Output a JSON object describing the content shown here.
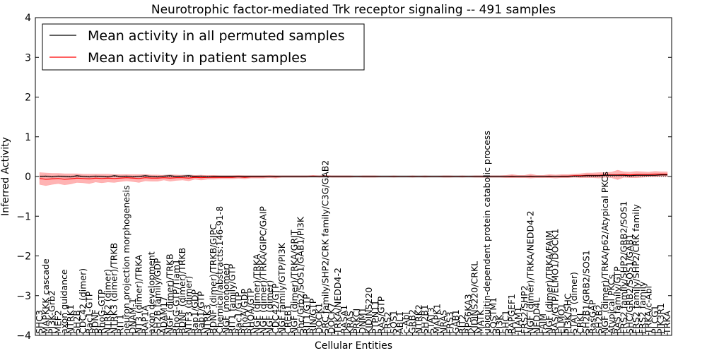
{
  "chart_data": {
    "type": "line",
    "title": "Neurotrophic factor-mediated Trk receptor signaling -- 491 samples",
    "xlabel": "Cellular Entities",
    "ylabel": "Inferred Activity",
    "ylim": [
      -4,
      4
    ],
    "yticks": [
      "4",
      "3",
      "2",
      "1",
      "0",
      "−1",
      "−2",
      "−3",
      "−4"
    ],
    "ytick_values": [
      4,
      3,
      2,
      1,
      0,
      -1,
      -2,
      -3,
      -4
    ],
    "grid": false,
    "legend_position": "top-left",
    "legend": [
      {
        "label": "Mean activity in all permuted samples",
        "color": "#000000"
      },
      {
        "label": "Mean activity in patient samples",
        "color": "#ff0000"
      }
    ],
    "colors": {
      "patient": "#ff0000",
      "patient_band": "#ff8080",
      "permuted": "#000000",
      "permuted_band": "#bbbbbb"
    },
    "categories": [
      "SHC3",
      "MAPKKK cascade",
      "PI3K-Grb2",
      "MEF2",
      "axon guidance",
      "NTRK1",
      "SH2B",
      "CDC42 (dimer)",
      "Rac1-GTP",
      "BDNF",
      "RhoG-GTP",
      "NTRK2 (dimer)",
      "NTRK3 (dimer)/TRKB",
      "RIT1",
      "neuron projection morphogenesis",
      "DNAM-1",
      "NT3 (dimer)/TRKA",
      "RAP1A",
      "axon development",
      "SH2B family/GDP",
      "ADAM17",
      "NGF (dimer)/TRKB",
      "RhoG-GTP/Tiam1",
      "BDNF (dimer)/TRKB",
      "NTF3 (dimer)",
      "Rap1/GDP",
      "Rap1/GTP",
      "NTRK3",
      "BDNF (dimer)/TRKB/GIPC",
      "Chemical/abstracts:146-91-8",
      "NGF (monomer)",
      "RIT1 family/GTP",
      "Rac1/GTP",
      "RhoA/GDP",
      "RHOA/GTP",
      "NGF (dimer)/TRKA",
      "NGF (dimer)/TRKA/GIPC/GAIP",
      "NGF (dimer)",
      "CDC42/GTP",
      "NGF family/GTP/PI3K",
      "CREB1",
      "NGF (dimer)/TRKA/GRIT",
      "Shc/Grb2/SOS1/GAB1/PI3K",
      "RIT1/GTP",
      "RIN/GTP",
      "DOCK1",
      "SRC family/SHP2/CRK family/C3G/GAB2",
      "DOCK7",
      "TRKA/NEDD4-2",
      "RASA1",
      "KRAS",
      "PRKCI",
      "DNM1",
      "KIDINS220",
      "PTPN11",
      "RAS/GTP",
      "FRS2",
      "SOS1",
      "ABL1",
      "c-Abl",
      "GRB2",
      "NTRK2",
      "SH2B1",
      "STAT3",
      "MAPK1",
      "NRAS",
      "FRS3",
      "GAB1",
      "RIT2",
      "RPS6KA3",
      "KIDINS220/CRKL",
      "MATK",
      "ubiquitin-dependent protein catabolic process",
      "SQSTM1",
      "PI3K",
      "SHC1",
      "RAPGEF1",
      "TIAM1",
      "FRS2/SHP2",
      "NGF (dimer)/TRKA/NEDD4-2",
      "NEDD4L",
      "FAIM",
      "NGF (dimer)/TRKA/FAIM",
      "RAS/GTP/ELMO1/DOCK1",
      "ELMO1",
      "PI3K/SHC",
      "STAT3 (dimer)",
      "CRKL",
      "SH2B1/GRB2/SOS1",
      "RasGAP",
      "SH2B2",
      "NGF (dimer)/TRKA/p62/Atypical PKCs",
      "Atypical PKCs",
      "RAS family/GTP",
      "FRS2 family/SHP2/GRB2/SOS1",
      "SHC/GRB2/SOS1/GAB1",
      "FRS2 family/SHP2/CRK family",
      "FRS2 family",
      "TRKA/c-Abl",
      "PLCG1",
      "PIK3R1",
      "TRKA"
    ],
    "series": [
      {
        "name": "Mean activity in patient samples",
        "values": [
          -0.05,
          -0.07,
          -0.06,
          -0.05,
          -0.07,
          -0.06,
          -0.04,
          -0.05,
          -0.06,
          -0.04,
          -0.05,
          -0.04,
          -0.05,
          -0.04,
          -0.03,
          -0.04,
          -0.05,
          -0.03,
          -0.04,
          -0.04,
          -0.03,
          -0.04,
          -0.03,
          -0.03,
          -0.04,
          -0.02,
          -0.03,
          -0.02,
          -0.02,
          -0.02,
          -0.02,
          -0.02,
          -0.01,
          -0.02,
          -0.01,
          -0.01,
          -0.01,
          0,
          -0.01,
          0,
          0,
          0,
          0,
          0,
          0.01,
          0,
          0.01,
          0,
          0,
          0,
          0,
          0,
          0,
          0,
          0,
          0,
          0,
          0,
          0,
          0,
          0,
          0,
          0,
          0,
          0,
          0,
          0,
          0,
          0,
          0,
          0,
          0,
          0,
          0,
          0,
          0,
          0.01,
          0,
          0,
          0.01,
          0,
          0,
          0.01,
          0,
          0.01,
          0.01,
          0.02,
          0.02,
          0.03,
          0.03,
          0.03,
          0.04,
          0.04,
          0.04,
          0.05,
          0.04,
          0.05,
          0.05,
          0.05,
          0.06,
          0.06,
          0.06
        ]
      },
      {
        "name": "Mean activity in all permuted samples",
        "values": [
          0,
          0.01,
          -0.01,
          0.01,
          0,
          -0.01,
          0.02,
          0,
          -0.01,
          0.01,
          0,
          -0.01,
          0.02,
          0,
          0.01,
          -0.01,
          0,
          0.02,
          0,
          -0.01,
          0.01,
          0.02,
          0,
          0.01,
          0.02,
          0,
          0.01,
          -0.01,
          0,
          0,
          0,
          0,
          0,
          0,
          0,
          0,
          0,
          0,
          0,
          0,
          0,
          0,
          0,
          0,
          0,
          0,
          0,
          0,
          0,
          0,
          0,
          0,
          0,
          0,
          0,
          0,
          0,
          0,
          0,
          0,
          0,
          0,
          0,
          0,
          0,
          0,
          0,
          0,
          0,
          0,
          0,
          0,
          0,
          0,
          0,
          0,
          0,
          0,
          0,
          0,
          0,
          0,
          0,
          0,
          0,
          0,
          0.01,
          0.01,
          0.02,
          0.02,
          0.02,
          0.03,
          0.03,
          0.03,
          0.03,
          0.02,
          0.03,
          0.03,
          0.03,
          0.03,
          0.04,
          0.04
        ]
      }
    ],
    "patient_band_halfwidth": [
      0.15,
      0.16,
      0.14,
      0.13,
      0.14,
      0.13,
      0.11,
      0.11,
      0.12,
      0.1,
      0.11,
      0.1,
      0.1,
      0.09,
      0.08,
      0.09,
      0.1,
      0.08,
      0.08,
      0.08,
      0.06,
      0.08,
      0.07,
      0.06,
      0.07,
      0.05,
      0.06,
      0.05,
      0.05,
      0.04,
      0.04,
      0.04,
      0.04,
      0.04,
      0.03,
      0.03,
      0.03,
      0.03,
      0.03,
      0.02,
      0.02,
      0.02,
      0.02,
      0.02,
      0.02,
      0.02,
      0.02,
      0.02,
      0.02,
      0.02,
      0.02,
      0.01,
      0.02,
      0.02,
      0.02,
      0.01,
      0.01,
      0.02,
      0.01,
      0.01,
      0.02,
      0.01,
      0.02,
      0.01,
      0.01,
      0.02,
      0.02,
      0.01,
      0.02,
      0.01,
      0.02,
      0.02,
      0.02,
      0.02,
      0.02,
      0.03,
      0.04,
      0.03,
      0.03,
      0.05,
      0.03,
      0.03,
      0.04,
      0.04,
      0.04,
      0.04,
      0.04,
      0.05,
      0.06,
      0.06,
      0.07,
      0.06,
      0.07,
      0.12,
      0.07,
      0.07,
      0.08,
      0.07,
      0.06,
      0.07,
      0.06,
      0.06
    ],
    "permuted_band_halfwidth": [
      0.03,
      0.03,
      0.03,
      0.03,
      0.03,
      0.03,
      0.03,
      0.03,
      0.03,
      0.03,
      0.03,
      0.03,
      0.03,
      0.03,
      0.03,
      0.03,
      0.03,
      0.03,
      0.03,
      0.03,
      0.03,
      0.03,
      0.03,
      0.03,
      0.03,
      0.03,
      0.03,
      0.03,
      0.03,
      0.03,
      0.03,
      0.03,
      0.03,
      0.03,
      0.03,
      0.03,
      0.03,
      0.03,
      0.03,
      0.03,
      0.03,
      0.03,
      0.03,
      0.03,
      0.03,
      0.03,
      0.03,
      0.03,
      0.03,
      0.03,
      0.03,
      0.03,
      0.03,
      0.03,
      0.03,
      0.03,
      0.03,
      0.03,
      0.03,
      0.03,
      0.03,
      0.03,
      0.03,
      0.03,
      0.03,
      0.03,
      0.03,
      0.03,
      0.03,
      0.03,
      0.03,
      0.03,
      0.03,
      0.03,
      0.03,
      0.03,
      0.03,
      0.03,
      0.03,
      0.03,
      0.03,
      0.03,
      0.03,
      0.03,
      0.03,
      0.03,
      0.03,
      0.03,
      0.03,
      0.03,
      0.03,
      0.03,
      0.03,
      0.03,
      0.03,
      0.03,
      0.03,
      0.03,
      0.03,
      0.03,
      0.03,
      0.03
    ]
  }
}
